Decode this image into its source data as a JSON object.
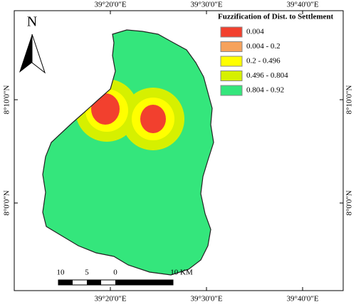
{
  "coordinates": {
    "top": [
      "39°20'0\"E",
      "39°30'0\"E",
      "39°40'0\"E"
    ],
    "bottom": [
      "39°20'0\"E",
      "39°30'0\"E",
      "39°40'0\"E"
    ],
    "left": [
      "8°10'0\"N",
      "8°0'0\"N"
    ],
    "right": [
      "8°10'0\"N",
      "8°0'0\"N"
    ]
  },
  "north_arrow": "N",
  "legend": {
    "title": "Fuzzification of Dist. to Settlement",
    "items": [
      {
        "label": "0.004",
        "color": "#f2402e"
      },
      {
        "label": "0.004 - 0.2",
        "color": "#f6a25c"
      },
      {
        "label": "0.2 - 0.496",
        "color": "#ffff00"
      },
      {
        "label": "0.496 - 0.804",
        "color": "#d6f000"
      },
      {
        "label": "0.804 - 0.92",
        "color": "#34e67c"
      }
    ]
  },
  "scale_bar": {
    "labels": [
      "10",
      "5",
      "0",
      "10 KM"
    ]
  }
}
